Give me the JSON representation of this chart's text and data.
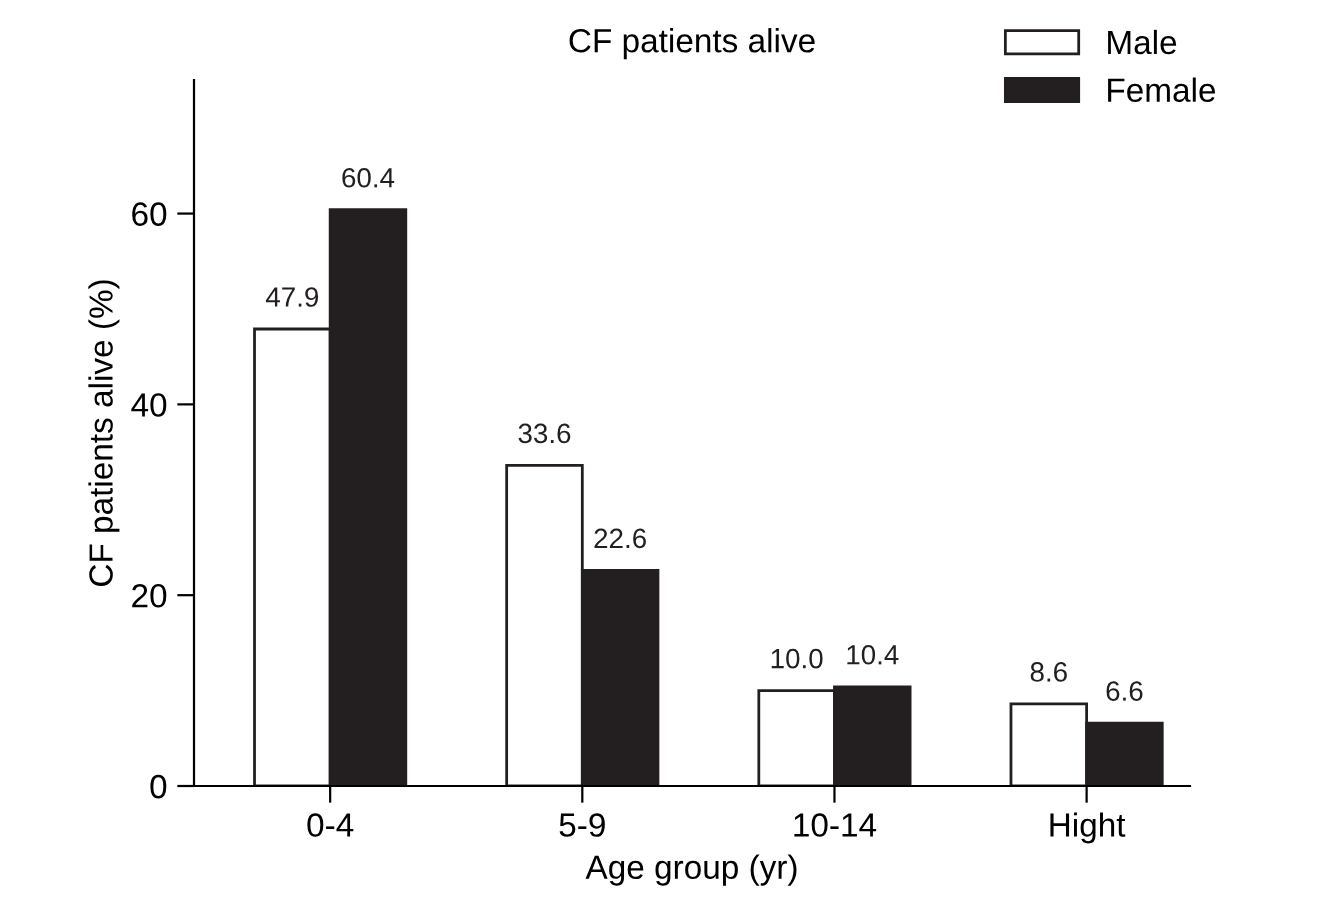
{
  "chart_data": {
    "type": "bar",
    "title": "CF patients alive",
    "xlabel": "Age group (yr)",
    "ylabel": "CF patients alive (%)",
    "categories": [
      "0-4",
      "5-9",
      "10-14",
      "Hight"
    ],
    "series": [
      {
        "name": "Male",
        "color": "#ffffff",
        "values": [
          47.9,
          33.6,
          10.0,
          8.6
        ],
        "value_labels": [
          "47.9",
          "33.6",
          "10.0",
          "8.6"
        ]
      },
      {
        "name": "Female",
        "color": "#231f20",
        "values": [
          60.4,
          22.6,
          10.4,
          6.6
        ],
        "value_labels": [
          "60.4",
          "22.6",
          "10.4",
          "6.6"
        ]
      }
    ],
    "ylim": [
      0,
      74
    ],
    "yticks": [
      0,
      20,
      40,
      60
    ],
    "legend": "top right",
    "grid": false
  }
}
